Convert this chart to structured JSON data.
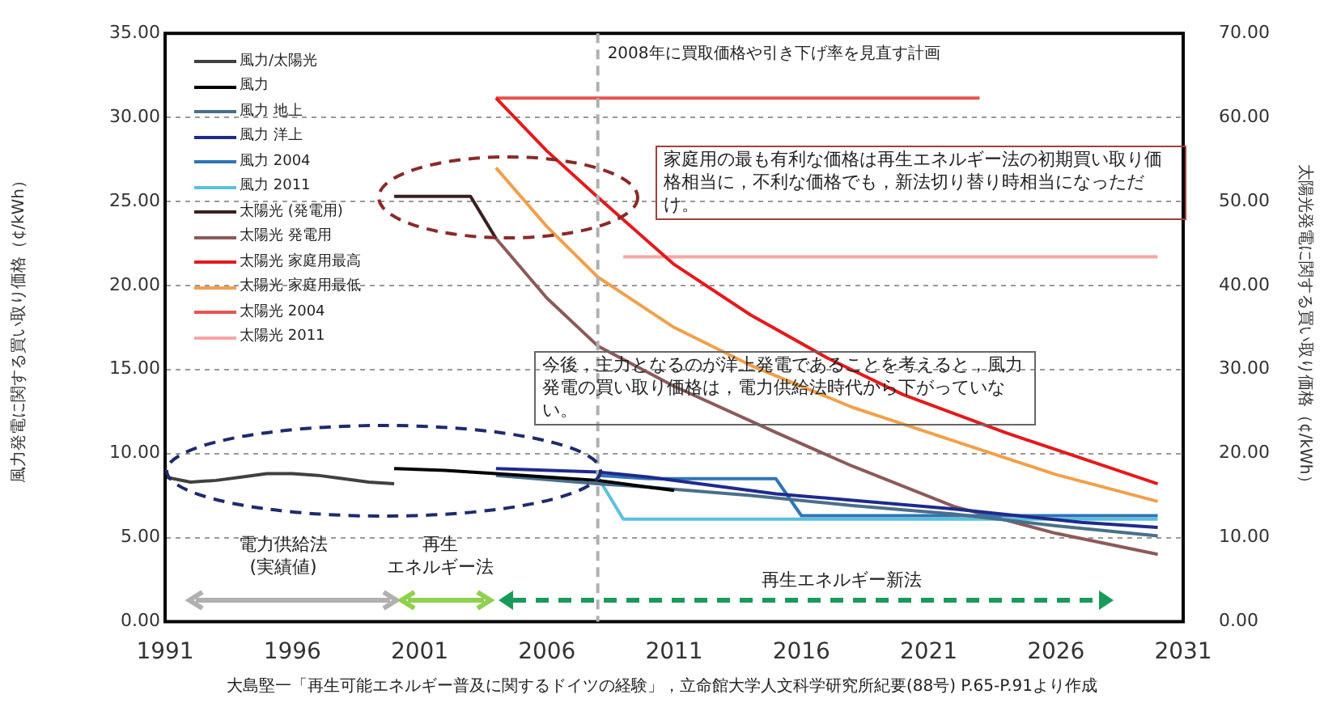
{
  "chart_data": {
    "type": "line",
    "xlabel": null,
    "ylabel": "風力発電に関する買い取り価格（¢/kWh）",
    "y2label": "太陽光発電に関する買い取り価格（¢/kWh）",
    "xlim": [
      1991,
      2031
    ],
    "xticks": [
      1991,
      1996,
      2001,
      2006,
      2011,
      2016,
      2021,
      2026,
      2031
    ],
    "ylim": [
      0,
      35
    ],
    "yticks": [
      {
        "value": 0,
        "label": "0.00"
      },
      {
        "value": 5,
        "label": "5.00"
      },
      {
        "value": 10,
        "label": "10.00"
      },
      {
        "value": 15,
        "label": "15.00"
      },
      {
        "value": 20,
        "label": "20.00"
      },
      {
        "value": 25,
        "label": "25.00"
      },
      {
        "value": 30,
        "label": "30.00"
      },
      {
        "value": 35,
        "label": "35.00"
      }
    ],
    "y2lim": [
      0,
      70
    ],
    "y2ticks": [
      {
        "value": 0,
        "label": "0.00"
      },
      {
        "value": 10,
        "label": "10.00"
      },
      {
        "value": 20,
        "label": "20.00"
      },
      {
        "value": 30,
        "label": "30.00"
      },
      {
        "value": 40,
        "label": "40.00"
      },
      {
        "value": 50,
        "label": "50.00"
      },
      {
        "value": 60,
        "label": "60.00"
      },
      {
        "value": 70,
        "label": "70.00"
      }
    ],
    "grid": "y",
    "legend": "top left",
    "marker": "none",
    "line_style": "solid",
    "series": [
      {
        "name": "風力/太陽光",
        "color": "#404040",
        "x": [
          1991,
          1992,
          1993,
          1994,
          1995,
          1996,
          1997,
          1998,
          1999,
          2000
        ],
        "values": [
          8.6,
          8.3,
          8.4,
          8.6,
          8.8,
          8.8,
          8.7,
          8.5,
          8.3,
          8.2
        ]
      },
      {
        "name": "風力",
        "color": "#000000",
        "x": [
          2000,
          2002,
          2004,
          2006,
          2008,
          2010,
          2011
        ],
        "values": [
          9.1,
          9.0,
          8.8,
          8.6,
          8.4,
          8.0,
          7.8
        ]
      },
      {
        "name": "風力 地上",
        "color": "#4a6f8a",
        "x": [
          2004,
          2008,
          2010,
          2014,
          2018,
          2022,
          2026,
          2030
        ],
        "values": [
          8.7,
          8.2,
          8.0,
          7.5,
          6.9,
          6.4,
          5.7,
          5.1
        ]
      },
      {
        "name": "風力 洋上",
        "color": "#1f2a8c",
        "x": [
          2004,
          2008,
          2010,
          2015,
          2022,
          2027,
          2030
        ],
        "values": [
          9.1,
          8.9,
          8.6,
          7.6,
          6.7,
          5.9,
          5.6
        ]
      },
      {
        "name": "風力 2004",
        "color": "#2e75b6",
        "x": [
          2008,
          2010,
          2015,
          2016,
          2030
        ],
        "values": [
          8.7,
          8.5,
          8.5,
          6.3,
          6.3
        ]
      },
      {
        "name": "風力 2011",
        "color": "#5bc0de",
        "x": [
          2008,
          2009,
          2030
        ],
        "values": [
          8.6,
          6.1,
          6.1
        ]
      },
      {
        "name": "太陽光 (発電用)",
        "color": "#3b1f1f",
        "axis": "y2",
        "x": [
          2000,
          2003,
          2004
        ],
        "values": [
          50.6,
          50.6,
          45.6
        ]
      },
      {
        "name": "太陽光 発電用",
        "color": "#8c5a5a",
        "axis": "y2",
        "x": [
          2004,
          2006,
          2008,
          2011,
          2015,
          2018,
          2022,
          2026,
          2030
        ],
        "values": [
          45.6,
          38.5,
          32.8,
          28.0,
          22.5,
          18.5,
          13.7,
          10.5,
          8.0
        ]
      },
      {
        "name": "太陽光 家庭用最高",
        "color": "#e31a1c",
        "axis": "y2",
        "x": [
          2004,
          2006,
          2008,
          2011,
          2014,
          2017,
          2020,
          2024,
          2030
        ],
        "values": [
          62.3,
          56.0,
          50.5,
          42.5,
          36.5,
          31.4,
          27.0,
          22.5,
          16.4
        ]
      },
      {
        "name": "太陽光 家庭用最低",
        "color": "#f0a04b",
        "axis": "y2",
        "x": [
          2004,
          2006,
          2008,
          2011,
          2014,
          2018,
          2022,
          2026,
          2030
        ],
        "values": [
          54.0,
          47.0,
          41.0,
          35.0,
          30.5,
          25.5,
          21.5,
          17.5,
          14.3
        ]
      },
      {
        "name": "太陽光 2004",
        "color": "#e8534f",
        "axis": "y2",
        "x": [
          2004,
          2023
        ],
        "values": [
          62.3,
          62.3
        ]
      },
      {
        "name": "太陽光 2011",
        "color": "#f4a6a6",
        "axis": "y2",
        "x": [
          2009,
          2030
        ],
        "values": [
          43.4,
          43.4
        ]
      }
    ],
    "ref_lines": [
      {
        "axis": "x",
        "value": 2008,
        "label": "2008年に買取価格や引き下げ率を見直す計画",
        "color": "#b0b0b0",
        "line_style": "dashed"
      }
    ],
    "annotations": [
      "家庭用の最も有利な価格は再生エネルギー法の初期買い取り価格相当に，不利な価格でも，新法切り替り時相当になっただけ。",
      "今後，主力となるのが洋上発電であることを考えると，風力発電の買い取り価格は，電力供給法時代から下がっていない。",
      "電力供給法\n(実績値)",
      "再生",
      "エネルギー法",
      "再生エネルギー新法",
      "大島堅一「再生可能エネルギー普及に関するドイツの経験」，立命館大学人文科学研究所紀要(88号) P.65-P.91より作成"
    ]
  }
}
